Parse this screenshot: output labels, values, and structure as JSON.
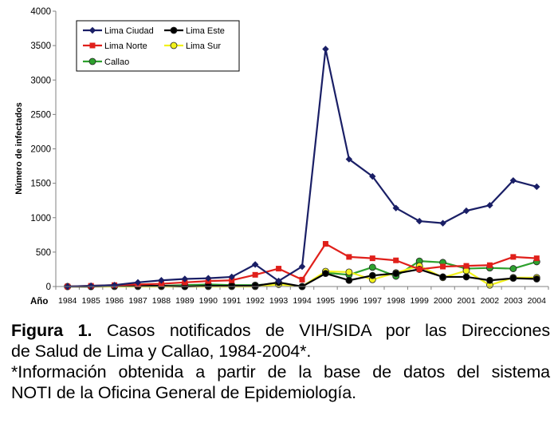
{
  "chart_data": {
    "type": "line",
    "x": [
      1984,
      1985,
      1986,
      1987,
      1988,
      1989,
      1990,
      1991,
      1992,
      1993,
      1994,
      1995,
      1996,
      1997,
      1998,
      1999,
      2000,
      2001,
      2002,
      2003,
      2004
    ],
    "xlabel": "Año",
    "ylabel": "Número de infectados",
    "ylim": [
      0,
      4000
    ],
    "yticks": [
      0,
      500,
      1000,
      1500,
      2000,
      2500,
      3000,
      3500,
      4000
    ],
    "grid": false,
    "legend": "top-left",
    "series": [
      {
        "name": "Lima Ciudad",
        "color": "#1a1f66",
        "marker": "diamond",
        "values": [
          0,
          10,
          20,
          60,
          90,
          110,
          120,
          140,
          320,
          80,
          290,
          3450,
          1850,
          1600,
          1140,
          950,
          920,
          1100,
          1180,
          1540,
          1450
        ]
      },
      {
        "name": "Lima Este",
        "color": "#000000",
        "marker": "circle",
        "values": [
          0,
          0,
          10,
          10,
          10,
          0,
          10,
          10,
          10,
          60,
          0,
          190,
          90,
          160,
          190,
          250,
          140,
          140,
          90,
          120,
          110
        ]
      },
      {
        "name": "Lima Norte",
        "color": "#e0201b",
        "marker": "square",
        "values": [
          0,
          10,
          20,
          30,
          40,
          60,
          80,
          90,
          170,
          260,
          100,
          620,
          430,
          410,
          380,
          250,
          290,
          300,
          310,
          430,
          410
        ]
      },
      {
        "name": "Lima Sur",
        "color": "#f2f21c",
        "marker": "circle",
        "values": [
          0,
          0,
          0,
          0,
          0,
          0,
          0,
          0,
          0,
          30,
          0,
          220,
          210,
          100,
          200,
          300,
          130,
          230,
          20,
          130,
          130
        ]
      },
      {
        "name": "Callao",
        "color": "#2ea12e",
        "marker": "circle",
        "values": [
          0,
          0,
          10,
          10,
          10,
          20,
          30,
          20,
          20,
          40,
          0,
          200,
          170,
          280,
          150,
          370,
          350,
          260,
          270,
          260,
          360
        ]
      }
    ]
  },
  "caption": {
    "label": "Figura 1.",
    "line1": "Casos notificados de VIH/SIDA por las Direcciones",
    "line2": "de Salud de Lima y Callao, 1984-2004*.",
    "line3": "*Información obtenida a partir de la base de datos del sistema",
    "line4": "NOTI de la Oficina General de Epidemiología."
  }
}
